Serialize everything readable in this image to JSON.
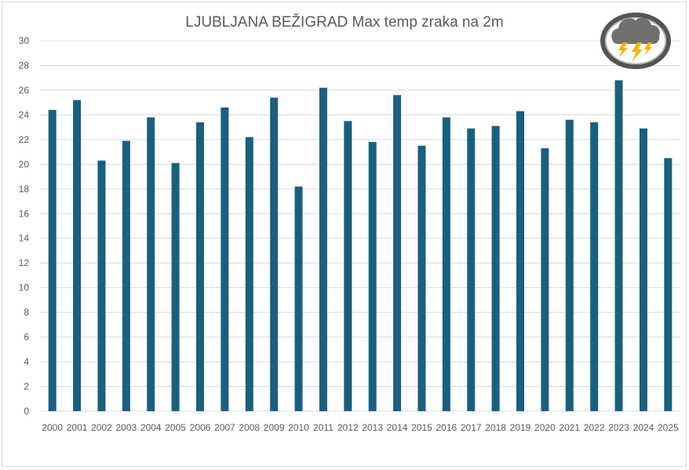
{
  "chart_data": {
    "type": "bar",
    "title": "LJUBLJANA BEŽIGRAD Max temp zraka na 2m",
    "xlabel": "",
    "ylabel": "",
    "ylim": [
      0,
      30
    ],
    "yticks": [
      0,
      2,
      4,
      6,
      8,
      10,
      12,
      14,
      16,
      18,
      20,
      22,
      24,
      26,
      28,
      30
    ],
    "grid": true,
    "categories": [
      "2000",
      "2001",
      "2002",
      "2003",
      "2004",
      "2005",
      "2006",
      "2007",
      "2008",
      "2009",
      "2010",
      "2011",
      "2012",
      "2013",
      "2014",
      "2015",
      "2016",
      "2017",
      "2018",
      "2019",
      "2020",
      "2021",
      "2022",
      "2023",
      "2024",
      "2025"
    ],
    "values": [
      24.4,
      25.2,
      20.3,
      21.9,
      23.8,
      20.1,
      23.4,
      24.6,
      22.2,
      25.4,
      18.2,
      26.2,
      23.5,
      21.8,
      25.6,
      21.5,
      23.8,
      22.9,
      23.1,
      24.3,
      21.3,
      23.6,
      23.4,
      26.8,
      22.9,
      20.5
    ],
    "bar_color": "#1a5f7f",
    "logo_icon": "thunderstorm-icon"
  }
}
